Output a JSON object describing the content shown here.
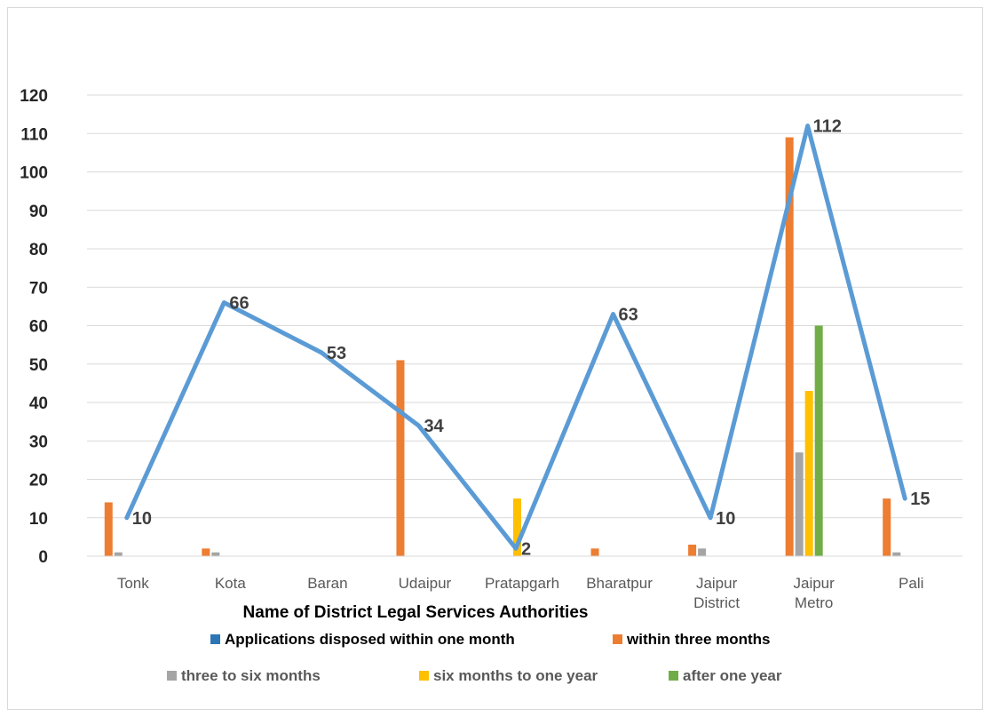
{
  "chart_data": {
    "type": "bar",
    "categories": [
      [
        "Tonk"
      ],
      [
        "Kota"
      ],
      [
        "Baran"
      ],
      [
        "Udaipur"
      ],
      [
        "Pratapgarh"
      ],
      [
        "Bharatpur"
      ],
      [
        "Jaipur",
        "District"
      ],
      [
        "Jaipur",
        "Metro"
      ],
      [
        "Pali"
      ]
    ],
    "xlabel": "Name of District Legal Services Authorities",
    "ylabel": "",
    "ylim": [
      0,
      120
    ],
    "yticks": [
      0,
      10,
      20,
      30,
      40,
      50,
      60,
      70,
      80,
      90,
      100,
      110,
      120
    ],
    "grid": true,
    "legend_position": "bottom",
    "line_series": {
      "name": "Applications disposed within one month",
      "color": "#5b9bd5",
      "values": [
        10,
        66,
        53,
        34,
        2,
        63,
        10,
        112,
        15
      ],
      "data_labels": [
        "10",
        "66",
        "53",
        "34",
        "2",
        "63",
        "10",
        "112",
        "15"
      ]
    },
    "series": [
      {
        "name": "within three months",
        "color": "#ed7d31",
        "values": [
          14,
          2,
          0,
          51,
          0,
          2,
          3,
          109,
          15
        ]
      },
      {
        "name": "three to six months",
        "color": "#a5a5a5",
        "values": [
          1,
          1,
          0,
          0,
          0,
          0,
          2,
          27,
          1
        ]
      },
      {
        "name": "six months to one year",
        "color": "#ffc000",
        "values": [
          0,
          0,
          0,
          0,
          15,
          0,
          0,
          43,
          0
        ]
      },
      {
        "name": "after one year",
        "color": "#70ad47",
        "values": [
          0,
          0,
          0,
          0,
          0,
          0,
          0,
          60,
          0
        ]
      }
    ],
    "legend": [
      {
        "label": "Applications disposed within one month",
        "color": "#2e75b6"
      },
      {
        "label": "within three months",
        "color": "#ed7d31"
      },
      {
        "label": "three to six months",
        "color": "#a5a5a5"
      },
      {
        "label": "six months to one year",
        "color": "#ffc000"
      },
      {
        "label": "after one year",
        "color": "#70ad47"
      }
    ]
  }
}
